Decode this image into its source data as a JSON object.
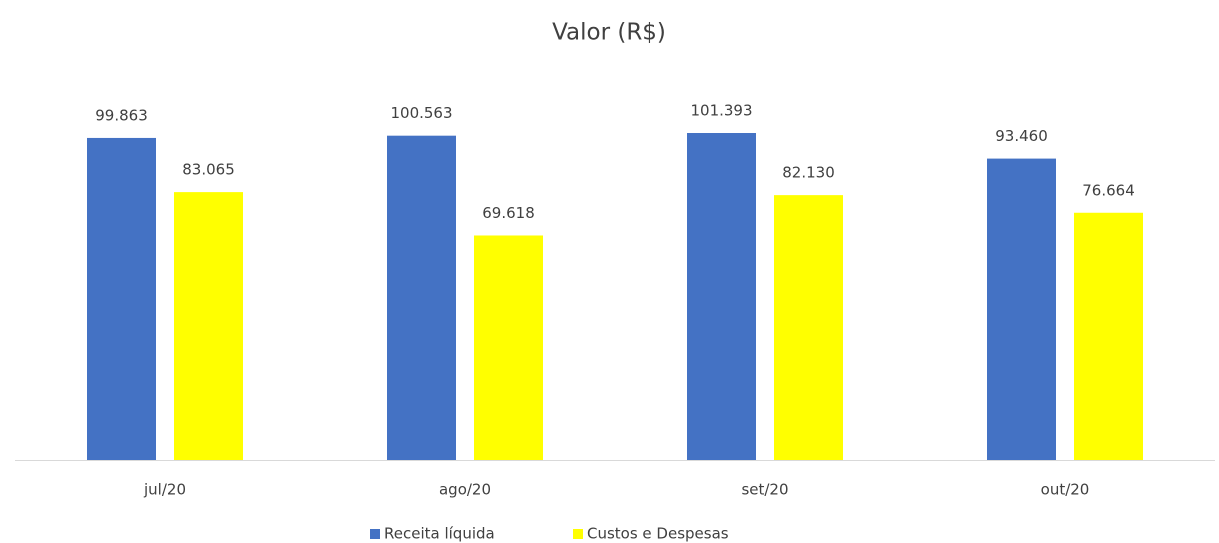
{
  "chart_data": {
    "type": "bar",
    "title": "Valor (R$)",
    "categories": [
      "jul/20",
      "ago/20",
      "set/20",
      "out/20"
    ],
    "series": [
      {
        "name": "Receita líquida",
        "color": "#4472c4",
        "values": [
          99863,
          100563,
          101393,
          93460
        ],
        "value_labels": [
          "99.863",
          "100.563",
          "101.393",
          "93.460"
        ]
      },
      {
        "name": "Custos e Despesas",
        "color": "#ffff00",
        "values": [
          83065,
          69618,
          82130,
          76664
        ],
        "value_labels": [
          "83.065",
          "69.618",
          "82.130",
          "76.664"
        ]
      }
    ],
    "ylim": [
      0,
      120000
    ],
    "legend": "bottom"
  }
}
